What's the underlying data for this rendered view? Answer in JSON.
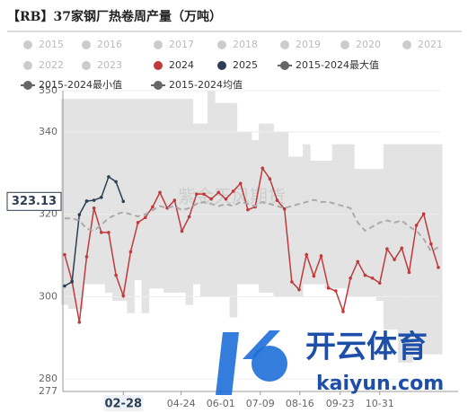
{
  "chart_data": {
    "type": "line",
    "title": "【RB】37家钢厂热卷周产量（万吨）",
    "watermarks": [
      "紫金天风期货",
      "开云体育",
      "kaiyun.com"
    ],
    "xlim": [
      1,
      52
    ],
    "xticks": [
      {
        "value": 9,
        "label": "02-28"
      },
      {
        "value": 16.9,
        "label": "04-24"
      },
      {
        "value": 22.3,
        "label": "06-01"
      },
      {
        "value": 27.7,
        "label": "07-09"
      },
      {
        "value": 33.1,
        "label": "08-16"
      },
      {
        "value": 38.6,
        "label": "09-23"
      },
      {
        "value": 44,
        "label": "10-31"
      }
    ],
    "ylim": [
      277,
      350
    ],
    "yticks": [
      277,
      280,
      300,
      320,
      340,
      350
    ],
    "grid": true,
    "series": [
      {
        "name": "2015",
        "color": "#cccccc",
        "visible": false
      },
      {
        "name": "2016",
        "color": "#cccccc",
        "visible": false
      },
      {
        "name": "2017",
        "color": "#cccccc",
        "visible": false
      },
      {
        "name": "2018",
        "color": "#cccccc",
        "visible": false
      },
      {
        "name": "2019",
        "color": "#cccccc",
        "visible": false
      },
      {
        "name": "2020",
        "color": "#cccccc",
        "visible": false
      },
      {
        "name": "2021",
        "color": "#cccccc",
        "visible": false
      },
      {
        "name": "2022",
        "color": "#cccccc",
        "visible": false
      },
      {
        "name": "2023",
        "color": "#cccccc",
        "visible": false
      },
      {
        "name": "2024",
        "color": "#c0393b",
        "visible": true,
        "style": "solid",
        "values": [
          310.2,
          303.8,
          293.8,
          309.7,
          321.5,
          315.6,
          315.6,
          305.2,
          300.2,
          310.9,
          318,
          319.2,
          321.8,
          325.3,
          321.5,
          323.4,
          315.9,
          319.4,
          324.9,
          324.9,
          323.7,
          325.3,
          323.7,
          325.6,
          327.5,
          321.1,
          321.8,
          331.2,
          328.6,
          323.4,
          321.3,
          303.6,
          301.7,
          310.2,
          305,
          309.9,
          302.1,
          301.4,
          296.4,
          304.5,
          308.5,
          305.2,
          304.5,
          303.3,
          311.6,
          309,
          311.8,
          305.9,
          317.3,
          320.1,
          312.8,
          307.1
        ]
      },
      {
        "name": "2025",
        "color": "#2c3e55",
        "visible": true,
        "style": "solid",
        "values": [
          302.6,
          303.6,
          319.9,
          323.2,
          323.4,
          324.1,
          329.1,
          327.9,
          323.13
        ]
      },
      {
        "name": "2015-2024最大值",
        "color": "#e3e3e3",
        "visible": true,
        "style": "band-top",
        "values": [
          348,
          348,
          348,
          348,
          348,
          348,
          348,
          348,
          348,
          348,
          348,
          348,
          348,
          348,
          348,
          348,
          348,
          348,
          342,
          342,
          350,
          347,
          347,
          347,
          340,
          340,
          338,
          342,
          342,
          340,
          340,
          334,
          334,
          337,
          333,
          333,
          333,
          337,
          337,
          337,
          331,
          331,
          331,
          331,
          337,
          337,
          337,
          337,
          337,
          337,
          337,
          337
        ]
      },
      {
        "name": "2015-2024最小值",
        "color": "#e3e3e3",
        "visible": true,
        "style": "band-bottom",
        "values": [
          298,
          297,
          297,
          303,
          303,
          303,
          301,
          299,
          299,
          296,
          304,
          296,
          302,
          302,
          301,
          301,
          301,
          298,
          303,
          300,
          300,
          300,
          300,
          295,
          303,
          303,
          303,
          301,
          301,
          300,
          300,
          300,
          300,
          303,
          303,
          303,
          302,
          302,
          302,
          300,
          300,
          300,
          300,
          299,
          292,
          292,
          284,
          284,
          286,
          286,
          286,
          286
        ]
      },
      {
        "name": "2015-2024均值",
        "color": "#aaaaaa",
        "visible": true,
        "style": "dashed",
        "values": [
          319,
          319,
          318.5,
          316.5,
          316,
          317.5,
          319,
          320,
          320.5,
          320,
          319.5,
          320,
          321,
          322,
          321.5,
          322,
          321,
          321.5,
          322.5,
          323,
          322.5,
          322,
          322.5,
          322,
          323,
          322.5,
          322,
          323,
          322.5,
          322,
          321.5,
          322,
          322.5,
          323,
          323.5,
          323,
          323,
          322.5,
          322,
          321.5,
          318,
          316,
          317,
          318,
          318.5,
          318,
          318.5,
          317,
          316,
          314,
          311,
          312
        ]
      }
    ]
  }
}
